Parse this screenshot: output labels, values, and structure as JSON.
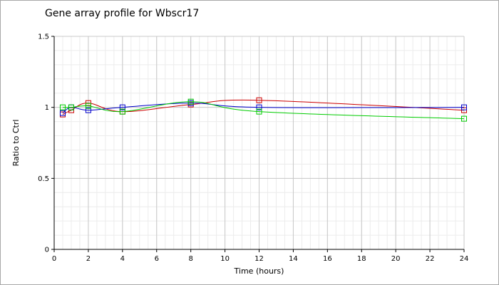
{
  "chart_data": {
    "type": "line",
    "title": "Gene array profile for Wbscr17",
    "xlabel": "Time (hours)",
    "ylabel": "Ratio to Ctrl",
    "xlim": [
      0,
      24
    ],
    "ylim": [
      0,
      1.5
    ],
    "x_ticks": [
      0,
      2,
      4,
      6,
      8,
      10,
      12,
      14,
      16,
      18,
      20,
      22,
      24
    ],
    "y_ticks": [
      0,
      0.5,
      1,
      1.5
    ],
    "grid": true,
    "legend": "none",
    "series": [
      {
        "color": "#cc0000",
        "x": [
          0.5,
          1,
          2,
          4,
          8,
          12,
          24
        ],
        "y": [
          0.95,
          0.98,
          1.03,
          0.97,
          1.02,
          1.05,
          0.98
        ]
      },
      {
        "color": "#0000cc",
        "x": [
          0.5,
          1,
          2,
          4,
          8,
          12,
          24
        ],
        "y": [
          0.96,
          1.0,
          0.98,
          1.0,
          1.03,
          1.0,
          1.0
        ]
      },
      {
        "color": "#00cc00",
        "x": [
          0.5,
          1,
          2,
          4,
          8,
          12,
          24
        ],
        "y": [
          1.0,
          1.0,
          1.01,
          0.97,
          1.04,
          0.97,
          0.92
        ]
      }
    ]
  }
}
